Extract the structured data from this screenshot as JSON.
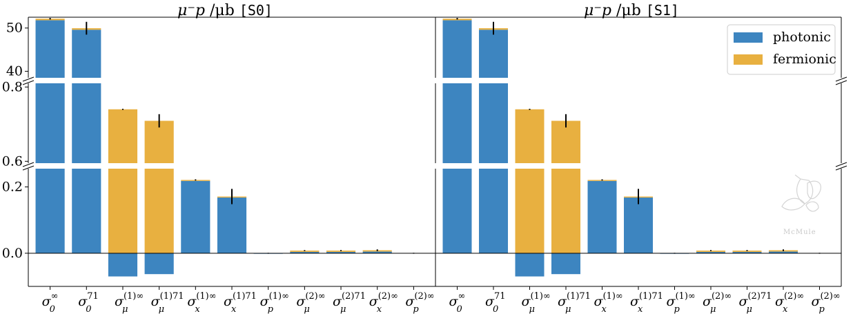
{
  "chart_data": {
    "type": "bar",
    "panels": [
      {
        "title_math": "μ⁻p",
        "title_unit": "/μb",
        "title_tag": "[S0]"
      },
      {
        "title_math": "μ⁻p",
        "title_unit": "/μb",
        "title_tag": "[S1]"
      }
    ],
    "categories": [
      {
        "base": "σ",
        "sub": "0",
        "sup": "∞"
      },
      {
        "base": "σ",
        "sub": "0",
        "sup": "71"
      },
      {
        "base": "σ",
        "sub": "μ",
        "sup": "(1)∞"
      },
      {
        "base": "σ",
        "sub": "μ",
        "sup": "(1)71"
      },
      {
        "base": "σ",
        "sub": "x",
        "sup": "(1)∞"
      },
      {
        "base": "σ",
        "sub": "x",
        "sup": "(1)71"
      },
      {
        "base": "σ",
        "sub": "p",
        "sup": "(1)∞"
      },
      {
        "base": "σ",
        "sub": "μ",
        "sup": "(2)∞"
      },
      {
        "base": "σ",
        "sub": "μ",
        "sup": "(2)71"
      },
      {
        "base": "σ",
        "sub": "x",
        "sup": "(2)∞"
      },
      {
        "base": "σ",
        "sub": "p",
        "sup": "(2)∞"
      }
    ],
    "series": [
      {
        "name": "photonic",
        "color": "#3d85c0",
        "values": [
          51.8,
          49.6,
          -0.07,
          -0.063,
          0.218,
          0.168,
          -0.001,
          0.004,
          0.004,
          0.005,
          0.0
        ]
      },
      {
        "name": "fermionic",
        "color": "#e8b040",
        "values": [
          0.35,
          0.35,
          0.74,
          0.709,
          0.003,
          0.003,
          0.0,
          0.004,
          0.004,
          0.004,
          0.0
        ]
      }
    ],
    "errors": [
      0.1,
      1.4,
      0.0005,
      0.017,
      0.0008,
      0.022,
      0.0002,
      0.0005,
      0.0006,
      0.0015,
      0.0003
    ],
    "segments": [
      {
        "ylim": [
          38.5,
          52.5
        ],
        "ticks": [
          "40",
          "50"
        ]
      },
      {
        "ylim": [
          0.595,
          0.81
        ],
        "ticks": [
          "0.6",
          "0.8"
        ]
      },
      {
        "ylim": [
          -0.1,
          0.255
        ],
        "ticks": [
          "0.0",
          "0.2"
        ]
      }
    ],
    "legend": {
      "placement": "top-right",
      "entries": [
        "photonic",
        "fermionic"
      ]
    },
    "grid": false,
    "watermark": "McMule"
  }
}
